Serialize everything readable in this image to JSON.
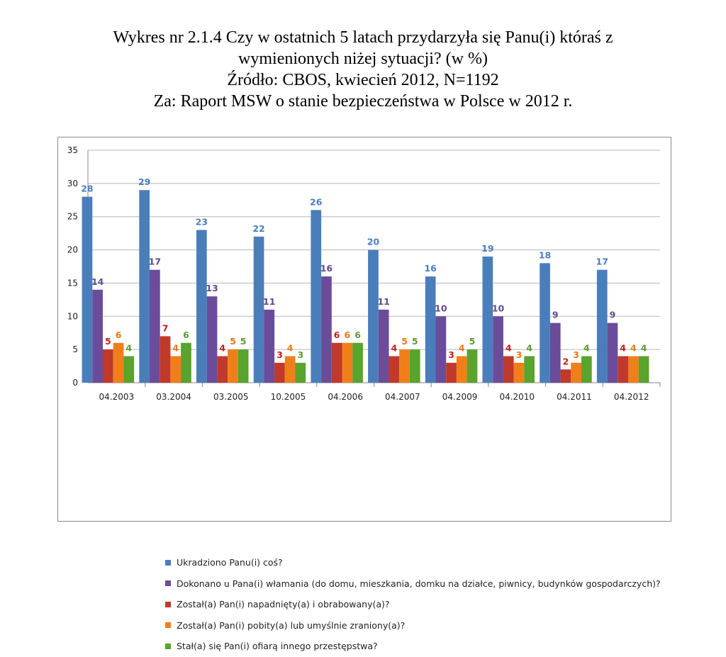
{
  "title_lines": [
    "Wykres nr 2.1.4 Czy w ostatnich 5 latach przydarzyła się Panu(i) któraś z",
    "wymienionych niżej sytuacji? (w %)",
    "Źródło: CBOS, kwiecień 2012, N=1192",
    "Za: Raport MSW o stanie bezpieczeństwa w Polsce w 2012 r."
  ],
  "chart_data": {
    "type": "bar",
    "categories": [
      "04.2003",
      "03.2004",
      "03.2005",
      "10.2005",
      "04.2006",
      "04.2007",
      "04.2009",
      "04.2010",
      "04.2011",
      "04.2012"
    ],
    "series": [
      {
        "name": "Ukradziono Panu(i) coś?",
        "color": "#4a7ebb",
        "label_color": "#4a7ebb",
        "values": [
          28,
          29,
          23,
          22,
          26,
          20,
          16,
          19,
          18,
          17
        ]
      },
      {
        "name": "Dokonano u Pana(i) włamania (do domu, mieszkania, domku na działce, piwnicy, budynków gospodarczych)?",
        "color": "#6b4c9a",
        "label_color": "#5f4a8b",
        "values": [
          14,
          17,
          13,
          11,
          16,
          11,
          10,
          10,
          9,
          9
        ]
      },
      {
        "name": "Został(a) Pan(i) napadnięty(a) i obrabowany(a)?",
        "color": "#c0392b",
        "label_color": "#c0201a",
        "values": [
          5,
          7,
          4,
          3,
          6,
          4,
          3,
          4,
          2,
          4
        ]
      },
      {
        "name": "Został(a) Pan(i) pobity(a) lub umyślnie zraniony(a)?",
        "color": "#f07f1a",
        "label_color": "#e8761a",
        "values": [
          6,
          4,
          5,
          4,
          6,
          5,
          4,
          3,
          3,
          4
        ]
      },
      {
        "name": "Stał(a) się Pan(i) ofiarą innego przestępstwa?",
        "color": "#58a42c",
        "label_color": "#5a9a32",
        "values": [
          4,
          6,
          5,
          3,
          6,
          5,
          5,
          4,
          4,
          4
        ]
      }
    ],
    "ylim": [
      0,
      35
    ],
    "yticks": [
      0,
      5,
      10,
      15,
      20,
      25,
      30,
      35
    ],
    "grid": true,
    "legend_position": "bottom"
  }
}
